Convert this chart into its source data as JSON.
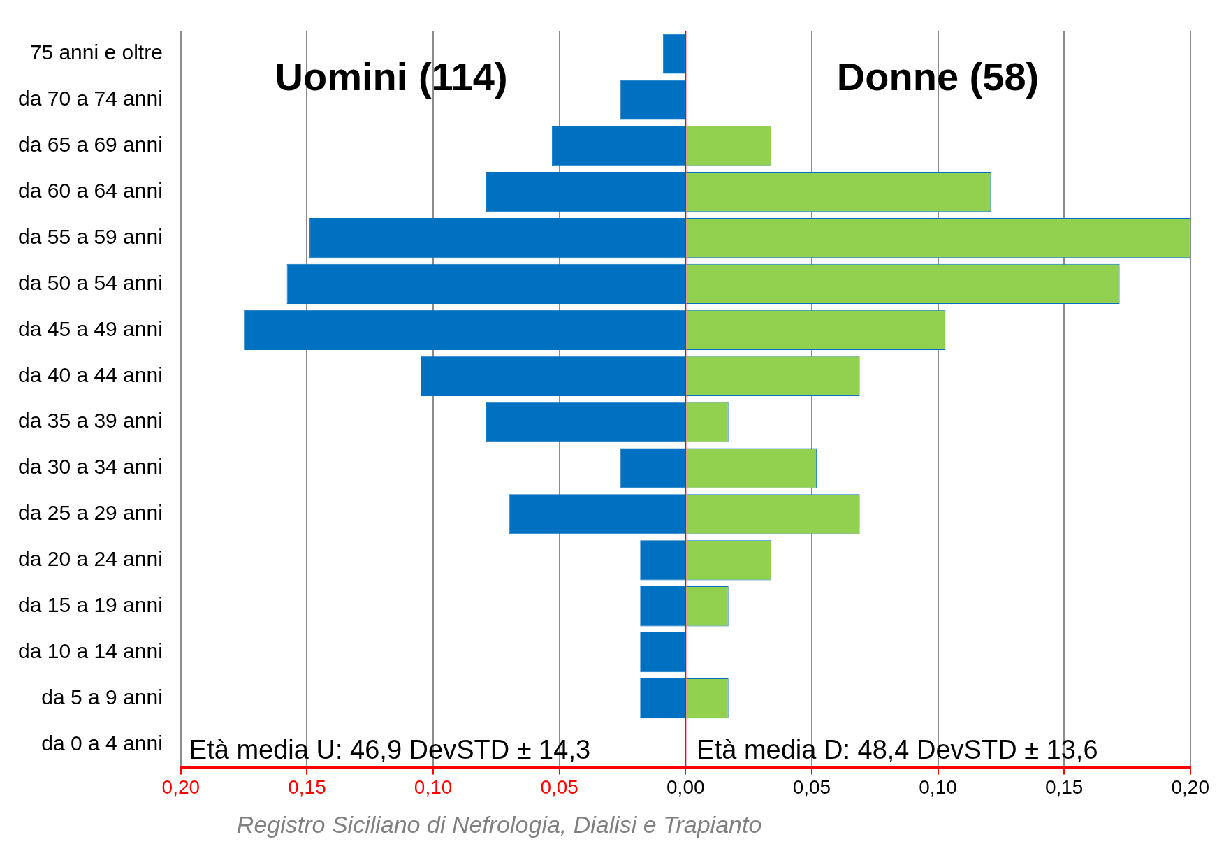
{
  "chart_data": {
    "type": "bar",
    "orientation": "horizontal",
    "stacked": true,
    "categories": [
      "75 anni e oltre",
      "da 70 a 74 anni",
      "da 65 a 69 anni",
      "da 60 a 64 anni",
      "da 55 a 59 anni",
      "da 50 a 54 anni",
      "da 45 a 49 anni",
      "da 40 a 44 anni",
      "da 35 a 39 anni",
      "da 30 a 34 anni",
      "da 25 a 29 anni",
      "da 20 a 24 anni",
      "da 15 a 19 anni",
      "da 10 a 14 anni",
      "da 5 a 9 anni",
      "da 0 a 4 anni"
    ],
    "series": [
      {
        "name": "Uomini (114)",
        "color": "#0070c0",
        "values": [
          -0.009,
          -0.026,
          -0.053,
          -0.079,
          -0.149,
          -0.158,
          -0.175,
          -0.105,
          -0.079,
          -0.026,
          -0.07,
          -0.018,
          -0.018,
          -0.018,
          -0.018,
          0
        ]
      },
      {
        "name": "Donne (58)",
        "color": "#92d050",
        "values": [
          0,
          0,
          0.034,
          0.121,
          0.2,
          0.172,
          0.103,
          0.069,
          0.017,
          0.052,
          0.069,
          0.034,
          0.017,
          0,
          0.017,
          0
        ]
      }
    ],
    "xlim": [
      -0.2,
      0.2
    ],
    "xticks": [
      {
        "value": -0.2,
        "label": "0,20"
      },
      {
        "value": -0.15,
        "label": "0,15"
      },
      {
        "value": -0.1,
        "label": "0,10"
      },
      {
        "value": -0.05,
        "label": "0,05"
      },
      {
        "value": 0,
        "label": "0,00"
      },
      {
        "value": 0.05,
        "label": "0,05"
      },
      {
        "value": 0.1,
        "label": "0,10"
      },
      {
        "value": 0.15,
        "label": "0,15"
      },
      {
        "value": 0.2,
        "label": "0,20"
      }
    ],
    "grid": "x",
    "legend": false,
    "ref_lines": [
      {
        "axis": "x",
        "value": 0,
        "color": "#ff0000"
      }
    ],
    "annotations": [
      "Età media U: 46,9 DevSTD ± 14,3",
      "Età media D: 48,4 DevSTD ± 13,6",
      "Registro Siciliano di Nefrologia, Dialisi e Trapianto"
    ]
  }
}
